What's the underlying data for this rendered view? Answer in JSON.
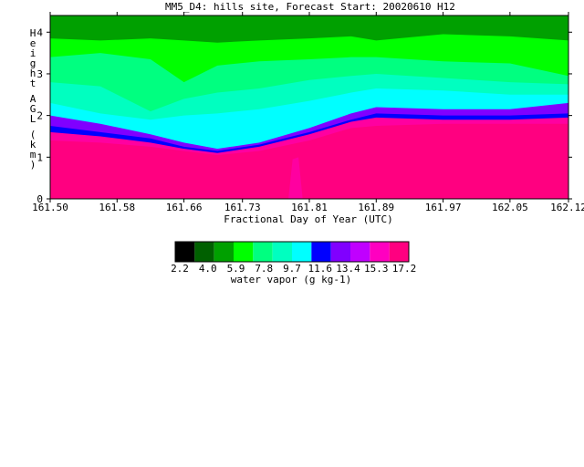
{
  "chart_data": {
    "type": "heatmap",
    "title": "MM5_D4: hills site,  Forecast Start: 20020610 H12",
    "xlabel": "Fractional Day of Year (UTC)",
    "ylabel": "Height AGL (km)",
    "x_ticks": [
      "161.50",
      "161.58",
      "161.66",
      "161.73",
      "161.81",
      "161.89",
      "161.97",
      "162.05",
      "162.12"
    ],
    "x_tick_values": [
      161.5,
      161.58,
      161.66,
      161.73,
      161.81,
      161.89,
      161.97,
      162.05,
      162.12
    ],
    "y_ticks": [
      "0",
      "1",
      "2",
      "3",
      "4"
    ],
    "y_tick_values": [
      0,
      1,
      2,
      3,
      4
    ],
    "xlim": [
      161.5,
      162.12
    ],
    "ylim": [
      0,
      4.4
    ],
    "colorbar": {
      "label": "water vapor (g kg-1)",
      "tick_labels": [
        "2.2",
        "4.0",
        "5.9",
        "7.8",
        "9.7",
        "11.6",
        "13.4",
        "15.3",
        "17.2"
      ],
      "colors": [
        "#000000",
        "#006000",
        "#00a000",
        "#00ff00",
        "#00ff80",
        "#00ffc0",
        "#00ffff",
        "#0000ff",
        "#8000ff",
        "#c000ff",
        "#ff00c0",
        "#ff0080"
      ]
    },
    "x_samples": [
      161.5,
      161.56,
      161.62,
      161.66,
      161.7,
      161.75,
      161.81,
      161.86,
      161.89,
      161.97,
      162.05,
      162.12
    ],
    "level_boundaries": [
      {
        "color": "#ff00a0",
        "heights": [
          1.4,
          1.35,
          1.25,
          1.15,
          1.05,
          1.15,
          1.4,
          1.7,
          1.75,
          1.8,
          1.8,
          1.8
        ]
      },
      {
        "color": "#0000ff",
        "heights": [
          1.6,
          1.5,
          1.35,
          1.2,
          1.1,
          1.25,
          1.55,
          1.85,
          1.95,
          1.9,
          1.9,
          1.95
        ]
      },
      {
        "color": "#8000ff",
        "heights": [
          1.75,
          1.6,
          1.45,
          1.25,
          1.15,
          1.3,
          1.6,
          1.9,
          2.05,
          2.0,
          2.0,
          2.05
        ]
      },
      {
        "color": "#00ffff",
        "heights": [
          2.0,
          1.8,
          1.55,
          1.35,
          1.2,
          1.35,
          1.7,
          2.05,
          2.2,
          2.15,
          2.15,
          2.3
        ]
      },
      {
        "color": "#00ffc0",
        "heights": [
          2.3,
          2.05,
          1.9,
          2.0,
          2.05,
          2.15,
          2.35,
          2.55,
          2.65,
          2.6,
          2.5,
          2.5
        ]
      },
      {
        "color": "#00ff80",
        "heights": [
          2.8,
          2.7,
          2.1,
          2.4,
          2.55,
          2.65,
          2.85,
          2.95,
          3.0,
          2.9,
          2.8,
          2.75
        ]
      },
      {
        "color": "#00ff00",
        "heights": [
          3.4,
          3.5,
          3.35,
          2.8,
          3.2,
          3.3,
          3.35,
          3.4,
          3.4,
          3.3,
          3.25,
          2.95
        ]
      },
      {
        "color": "#00a000",
        "heights": [
          3.85,
          3.8,
          3.85,
          3.8,
          3.75,
          3.8,
          3.85,
          3.9,
          3.8,
          3.95,
          3.9,
          3.8
        ]
      },
      {
        "color": "#006000",
        "heights": [
          4.4,
          4.4,
          4.4,
          4.4,
          4.4,
          4.4,
          4.4,
          4.4,
          4.4,
          4.4,
          4.4,
          4.4
        ]
      }
    ],
    "surface_color": "#ff0080",
    "pockets": [
      {
        "color": "#ff00a0",
        "x": [
          161.785,
          161.79,
          161.797,
          161.802
        ],
        "heights": [
          0.0,
          0.95,
          1.0,
          0.0
        ]
      }
    ]
  }
}
